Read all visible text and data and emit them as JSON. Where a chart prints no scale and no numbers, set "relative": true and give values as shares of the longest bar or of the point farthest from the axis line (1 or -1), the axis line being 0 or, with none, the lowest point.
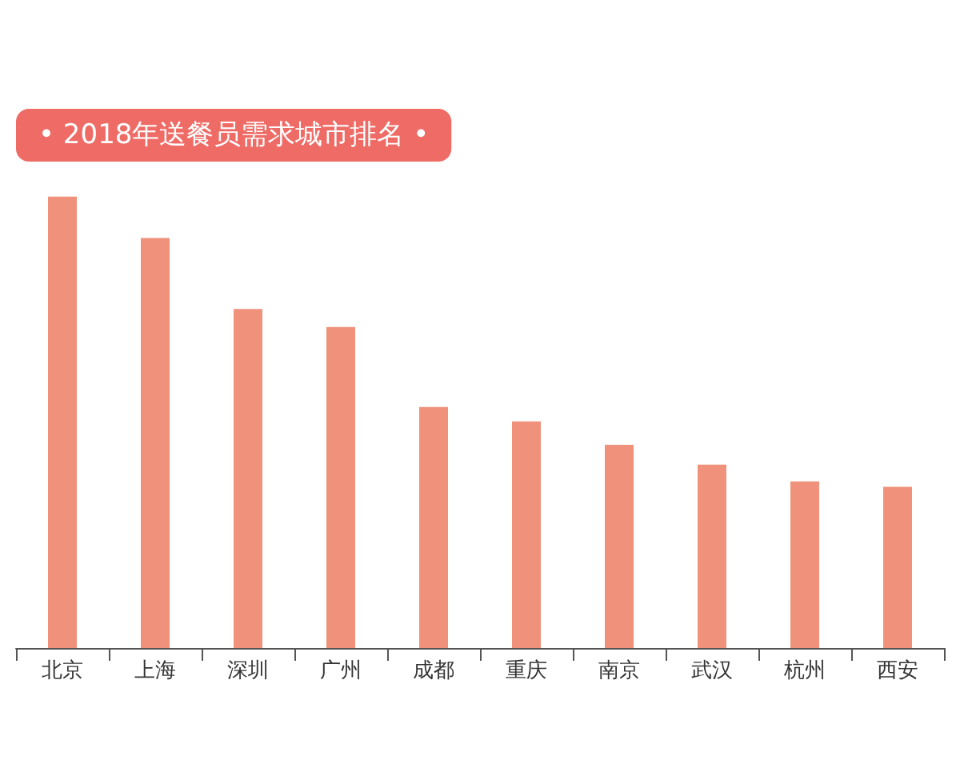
{
  "chart_data": {
    "type": "bar",
    "title": "• 2018年送餐员需求城市排名 •",
    "relative": true,
    "categories": [
      "北京",
      "上海",
      "深圳",
      "广州",
      "成都",
      "重庆",
      "南京",
      "武汉",
      "杭州",
      "西安"
    ],
    "values": [
      1,
      0.908,
      0.751,
      0.711,
      0.534,
      0.502,
      0.45,
      0.406,
      0.369,
      0.357
    ],
    "color": "#f0917b"
  }
}
